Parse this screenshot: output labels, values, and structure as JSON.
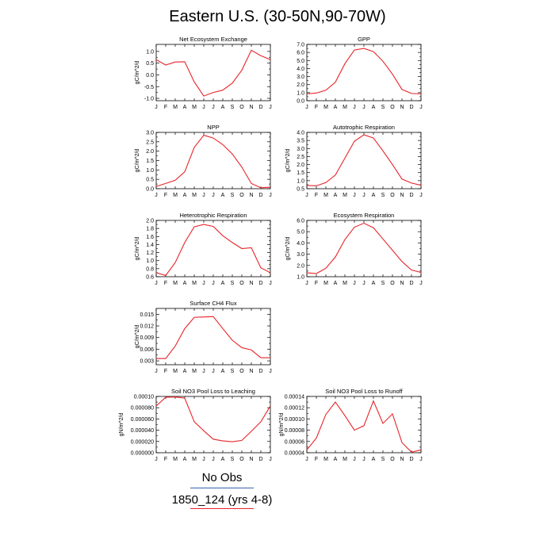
{
  "title": "Eastern U.S. (30-50N,90-70W)",
  "months": [
    "J",
    "F",
    "M",
    "A",
    "M",
    "J",
    "J",
    "A",
    "S",
    "O",
    "N",
    "D",
    "J"
  ],
  "colors": {
    "model": "#e8242a",
    "obs_line": "#3a5fb0",
    "run_line": "#e8242a"
  },
  "legend": {
    "obs": "No Obs",
    "run": "1850_124 (yrs 4-8)"
  },
  "chart_data": [
    {
      "type": "line",
      "title": "Net Ecosystem Exchange",
      "ylabel": "gC/m^2/d",
      "ylim": [
        -1.1,
        1.3
      ],
      "yticks": [
        "1.0",
        "0.5",
        "0.0",
        "-0.5",
        "-1.0"
      ],
      "ytick_values": [
        1.0,
        0.5,
        0.0,
        -0.5,
        -1.0
      ],
      "values": [
        0.65,
        0.42,
        0.55,
        0.56,
        -0.3,
        -0.9,
        -0.75,
        -0.65,
        -0.35,
        0.2,
        1.05,
        0.82,
        0.65
      ]
    },
    {
      "type": "line",
      "title": "GPP",
      "ylabel": "",
      "ylim": [
        0.0,
        7.0
      ],
      "yticks": [
        "7.0",
        "6.0",
        "5.0",
        "4.0",
        "3.0",
        "2.0",
        "1.0",
        "0.0"
      ],
      "ytick_values": [
        7,
        6,
        5,
        4,
        3,
        2,
        1,
        0
      ],
      "values": [
        0.85,
        0.95,
        1.3,
        2.3,
        4.6,
        6.3,
        6.5,
        6.1,
        4.9,
        3.3,
        1.4,
        0.9,
        0.85
      ]
    },
    {
      "type": "line",
      "title": "NPP",
      "ylabel": "gC/m^2/d",
      "ylim": [
        0.0,
        3.0
      ],
      "yticks": [
        "3.0",
        "2.5",
        "2.0",
        "1.5",
        "1.0",
        "0.5",
        "0.0"
      ],
      "ytick_values": [
        3,
        2.5,
        2,
        1.5,
        1,
        0.5,
        0
      ],
      "values": [
        0.12,
        0.28,
        0.45,
        0.9,
        2.2,
        2.85,
        2.7,
        2.35,
        1.85,
        1.15,
        0.28,
        0.05,
        0.08
      ]
    },
    {
      "type": "line",
      "title": "Autotrophic Respiration",
      "ylabel": "gC/m^2/d",
      "ylim": [
        0.5,
        4.0
      ],
      "yticks": [
        "4.0",
        "3.5",
        "3.0",
        "2.5",
        "2.0",
        "1.5",
        "1.0",
        "0.5"
      ],
      "ytick_values": [
        4,
        3.5,
        3,
        2.5,
        2,
        1.5,
        1,
        0.5
      ],
      "values": [
        0.7,
        0.68,
        0.88,
        1.35,
        2.4,
        3.45,
        3.85,
        3.65,
        2.85,
        2.0,
        1.1,
        0.85,
        0.72
      ]
    },
    {
      "type": "line",
      "title": "Heterotrophic Respiration",
      "ylabel": "gC/m^2/d",
      "ylim": [
        0.6,
        2.0
      ],
      "yticks": [
        "2.0",
        "1.8",
        "1.6",
        "1.4",
        "1.2",
        "1.0",
        "0.8",
        "0.6"
      ],
      "ytick_values": [
        2,
        1.8,
        1.6,
        1.4,
        1.2,
        1,
        0.8,
        0.6
      ],
      "values": [
        0.7,
        0.63,
        0.95,
        1.45,
        1.84,
        1.9,
        1.85,
        1.62,
        1.45,
        1.3,
        1.32,
        0.82,
        0.7
      ]
    },
    {
      "type": "line",
      "title": "Ecosystem Respiration",
      "ylabel": "gC/m^2/d",
      "ylim": [
        1.0,
        6.0
      ],
      "yticks": [
        "6.0",
        "5.0",
        "4.0",
        "3.0",
        "2.0",
        "1.0"
      ],
      "ytick_values": [
        6,
        5,
        4,
        3,
        2,
        1
      ],
      "values": [
        1.35,
        1.28,
        1.75,
        2.75,
        4.3,
        5.4,
        5.75,
        5.35,
        4.35,
        3.35,
        2.35,
        1.6,
        1.38
      ]
    },
    {
      "type": "line",
      "title": "Surface CH4 Flux",
      "ylabel": "gC/m^2/d",
      "ylim": [
        0.002,
        0.0165
      ],
      "yticks": [
        "0.015",
        "0.012",
        "0.009",
        "0.006",
        "0.003"
      ],
      "ytick_values": [
        0.015,
        0.012,
        0.009,
        0.006,
        0.003
      ],
      "values": [
        0.0036,
        0.0036,
        0.0068,
        0.0113,
        0.0142,
        0.0143,
        0.0144,
        0.0113,
        0.0083,
        0.0064,
        0.0058,
        0.0038,
        0.0038
      ]
    },
    {
      "type": "line",
      "title": "Soil NO3 Pool Loss to Leaching",
      "ylabel": "gN/m^2/d",
      "ylim": [
        0.0,
        0.0001
      ],
      "yticks": [
        "0.00010",
        "0.000080",
        "0.000060",
        "0.000040",
        "0.000020",
        "0.000000"
      ],
      "ytick_values": [
        0.0001,
        8e-05,
        6e-05,
        4e-05,
        2e-05,
        0
      ],
      "values": [
        8.3e-05,
        9.85e-05,
        9.9e-05,
        9.7e-05,
        5.5e-05,
        3.9e-05,
        2.4e-05,
        2.1e-05,
        1.95e-05,
        2.2e-05,
        3.8e-05,
        5.5e-05,
        8.3e-05
      ]
    },
    {
      "type": "line",
      "title": "Soil NO3 Pool Loss to Runoff",
      "ylabel": "gN/m^2/d",
      "ylim": [
        4e-05,
        0.00014
      ],
      "yticks": [
        "0.00014",
        "0.00012",
        "0.00010",
        "0.00008",
        "0.00006",
        "0.00004"
      ],
      "ytick_values": [
        0.00014,
        0.00012,
        0.0001,
        8e-05,
        6e-05,
        4e-05
      ],
      "values": [
        4.5e-05,
        6.6e-05,
        0.000108,
        0.00013,
        0.000106,
        8e-05,
        8.8e-05,
        0.000132,
        9.2e-05,
        0.000109,
        5.8e-05,
        4.1e-05,
        4.5e-05
      ]
    }
  ]
}
